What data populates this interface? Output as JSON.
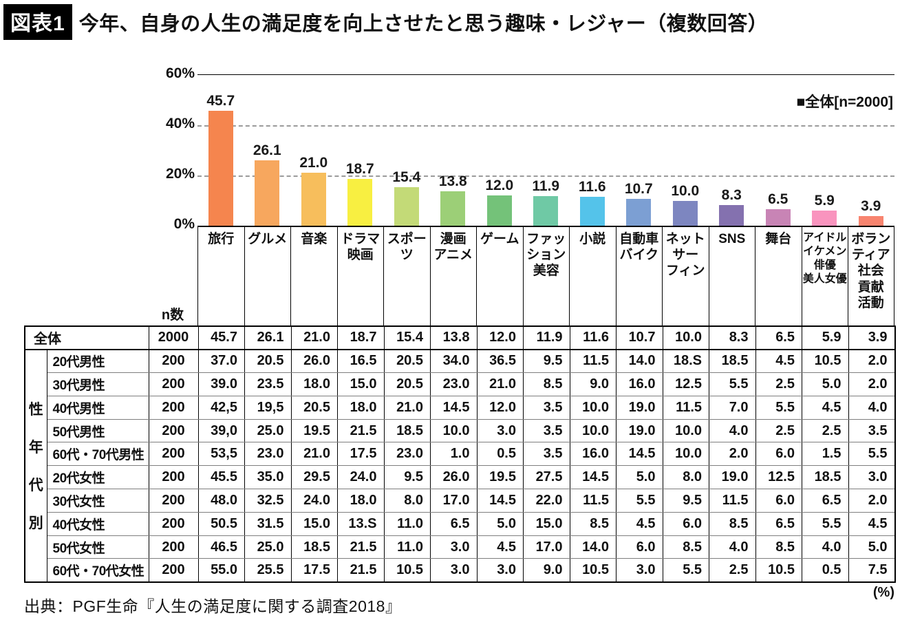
{
  "header": {
    "tag": "図表1",
    "title": "今年、自身の人生の満足度を向上させたと思う趣味・レジャー（複数回答）"
  },
  "chart_data": {
    "type": "bar",
    "title": "今年、自身の人生の満足度を向上させたと思う趣味・レジャー（複数回答）",
    "legend": "■全体[n=2000]",
    "ylim": [
      0,
      60
    ],
    "yticks": [
      60,
      40,
      20,
      0
    ],
    "ytick_labels": [
      "60%",
      "40%",
      "20%",
      "0%"
    ],
    "dashed_gridlines": [
      40,
      20
    ],
    "categories": [
      "旅行",
      "グルメ",
      "音楽",
      "ドラマ\n映画",
      "スポー\nツ",
      "漫画\nアニメ",
      "ゲーム",
      "ファッ\nション\n美容",
      "小説",
      "自動車\nバイク",
      "ネット\nサー\nフィン",
      "SNS",
      "舞台",
      "アイドル\nイケメン\n俳優\n美人女優",
      "ボラン\nティア\n社会\n貢献\n活動"
    ],
    "values": [
      45.7,
      26.1,
      21.0,
      18.7,
      15.4,
      13.8,
      12.0,
      11.9,
      11.6,
      10.7,
      10.0,
      8.3,
      6.5,
      5.9,
      3.9
    ],
    "value_labels": [
      "45.7",
      "26.1",
      "21.0",
      "18.7",
      "15.4",
      "13.8",
      "12.0",
      "11.9",
      "11.6",
      "10.7",
      "10.0",
      "8.3",
      "6.5",
      "5.9",
      "3.9"
    ],
    "bar_colors": [
      "#F5854E",
      "#F7A75E",
      "#F7BE5C",
      "#F8EF41",
      "#C3DA77",
      "#9CCF77",
      "#74C279",
      "#6FC9A5",
      "#54C3EA",
      "#7C9FD3",
      "#7D86C0",
      "#8471AF",
      "#C884B5",
      "#F994BE",
      "#F8846F"
    ]
  },
  "table": {
    "n_header": "n数",
    "group_label": "性年代別",
    "rows": [
      {
        "label": "全体",
        "n": "2000",
        "values": [
          "45.7",
          "26.1",
          "21.0",
          "18.7",
          "15.4",
          "13.8",
          "12.0",
          "11.9",
          "11.6",
          "10.7",
          "10.0",
          "8.3",
          "6.5",
          "5.9",
          "3.9"
        ]
      },
      {
        "label": "20代男性",
        "n": "200",
        "values": [
          "37.0",
          "20.5",
          "26.0",
          "16.5",
          "20.5",
          "34.0",
          "36.5",
          "9.5",
          "11.5",
          "14.0",
          "18.S",
          "18.5",
          "4.5",
          "10.5",
          "2.0"
        ]
      },
      {
        "label": "30代男性",
        "n": "200",
        "values": [
          "39.0",
          "23.5",
          "18.0",
          "15.0",
          "20.5",
          "23.0",
          "21.0",
          "8.5",
          "9.0",
          "16.0",
          "12.5",
          "5.5",
          "2.5",
          "5.0",
          "2.0"
        ]
      },
      {
        "label": "40代男性",
        "n": "200",
        "values": [
          "42,5",
          "19,5",
          "20.5",
          "18.0",
          "21.0",
          "14.5",
          "12.0",
          "3.5",
          "10.0",
          "19.0",
          "11.5",
          "7.0",
          "5.5",
          "4.5",
          "4.0"
        ]
      },
      {
        "label": "50代男性",
        "n": "200",
        "values": [
          "39,0",
          "25.0",
          "19.5",
          "21.5",
          "18.5",
          "10.0",
          "3.0",
          "3.5",
          "10.0",
          "19.0",
          "10.0",
          "4.0",
          "2.5",
          "2.5",
          "3.5"
        ]
      },
      {
        "label": "60代・70代男性",
        "n": "200",
        "values": [
          "53,5",
          "23.0",
          "21.0",
          "17.5",
          "23.0",
          "1.0",
          "0.5",
          "3.5",
          "16.0",
          "14.5",
          "10.0",
          "2.0",
          "6.0",
          "1.5",
          "5.5"
        ]
      },
      {
        "label": "20代女性",
        "n": "200",
        "values": [
          "45.5",
          "35.0",
          "29.5",
          "24.0",
          "9.5",
          "26.0",
          "19.5",
          "27.5",
          "14.5",
          "5.0",
          "8.0",
          "19.0",
          "12.5",
          "18.5",
          "3.0"
        ]
      },
      {
        "label": "30代女性",
        "n": "200",
        "values": [
          "48.0",
          "32.5",
          "24.0",
          "18.0",
          "8.0",
          "17.0",
          "14.5",
          "22.0",
          "11.5",
          "5.5",
          "9.5",
          "11.5",
          "6.0",
          "6.5",
          "2.0"
        ]
      },
      {
        "label": "40代女性",
        "n": "200",
        "values": [
          "50.5",
          "31.5",
          "15.0",
          "13.S",
          "11.0",
          "6.5",
          "5.0",
          "15.0",
          "8.5",
          "4.5",
          "6.0",
          "8.5",
          "6.5",
          "5.5",
          "4.5"
        ]
      },
      {
        "label": "50代女性",
        "n": "200",
        "values": [
          "46.5",
          "25.0",
          "18.5",
          "21.5",
          "11.0",
          "3.0",
          "4.5",
          "17.0",
          "14.0",
          "6.0",
          "8.5",
          "4.0",
          "8.5",
          "4.0",
          "5.0"
        ]
      },
      {
        "label": "60代・70代女性",
        "n": "200",
        "values": [
          "55.0",
          "25.5",
          "17.5",
          "21.5",
          "10.5",
          "3.0",
          "3.0",
          "9.0",
          "10.5",
          "3.0",
          "5.5",
          "2.5",
          "10.5",
          "0.5",
          "7.5"
        ]
      }
    ]
  },
  "footer": {
    "source": "出典：PGF生命『人生の満足度に関する調査2018』",
    "unit": "(%)"
  }
}
